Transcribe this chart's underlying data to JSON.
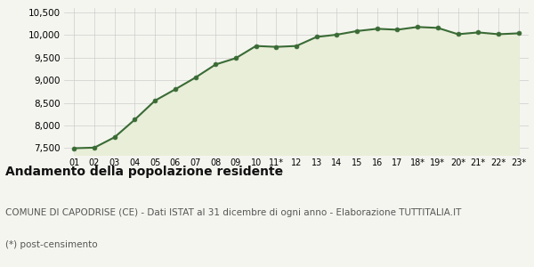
{
  "x_labels": [
    "01",
    "02",
    "03",
    "04",
    "05",
    "06",
    "07",
    "08",
    "09",
    "10",
    "11*",
    "12",
    "13",
    "14",
    "15",
    "16",
    "17",
    "18*",
    "19*",
    "20*",
    "21*",
    "22*",
    "23*"
  ],
  "values": [
    7497,
    7510,
    7740,
    8130,
    8550,
    8800,
    9060,
    9350,
    9490,
    9760,
    9740,
    9760,
    9960,
    10010,
    10090,
    10140,
    10120,
    10180,
    10160,
    10020,
    10060,
    10020,
    10040
  ],
  "line_color": "#3a6b35",
  "fill_color": "#e8eed8",
  "marker_color": "#3a6b35",
  "bg_color": "#f5f5f0",
  "grid_color": "#cccccc",
  "title": "Andamento della popolazione residente",
  "subtitle": "COMUNE DI CAPODRISE (CE) - Dati ISTAT al 31 dicembre di ogni anno - Elaborazione TUTTITALIA.IT",
  "footnote": "(*) post-censimento",
  "ylim": [
    7350,
    10600
  ],
  "yticks": [
    7500,
    8000,
    8500,
    9000,
    9500,
    10000,
    10500
  ],
  "title_fontsize": 10,
  "subtitle_fontsize": 7.5,
  "footnote_fontsize": 7.5
}
